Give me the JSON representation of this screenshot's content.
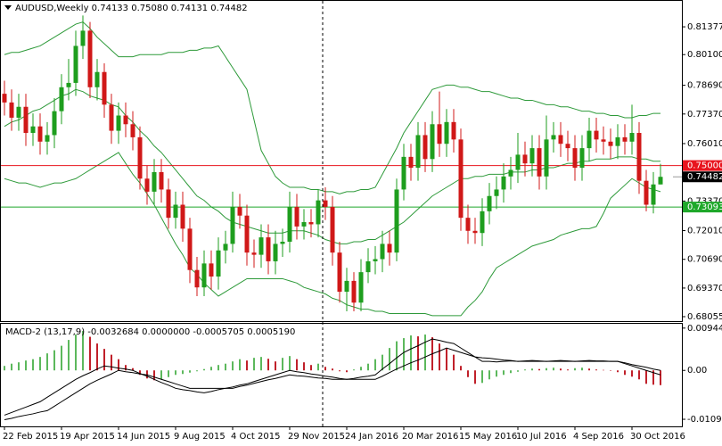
{
  "chart_data": {
    "type": "candlestick",
    "title": "AUDUSD,Weekly  0.74133 0.75080 0.74131 0.74482",
    "ylim": [
      0.6785,
      0.8261
    ],
    "yticks": [
      {
        "value": 0.81377,
        "label": "0.81377"
      },
      {
        "value": 0.801,
        "label": "0.80100"
      },
      {
        "value": 0.7869,
        "label": "0.78690"
      },
      {
        "value": 0.7737,
        "label": "0.77370"
      },
      {
        "value": 0.7601,
        "label": "0.76010"
      },
      {
        "value": 0.7337,
        "label": "0.73370"
      },
      {
        "value": 0.7201,
        "label": "0.72010"
      },
      {
        "value": 0.7069,
        "label": "0.70690"
      },
      {
        "value": 0.6937,
        "label": "0.69370"
      },
      {
        "value": 0.68055,
        "label": "0.68055"
      }
    ],
    "categories": [
      "22 Feb 2015",
      null,
      null,
      null,
      null,
      null,
      null,
      null,
      "19 Apr 2015",
      null,
      null,
      null,
      null,
      null,
      null,
      null,
      "14 Jun 2015",
      null,
      null,
      null,
      null,
      null,
      null,
      null,
      "9 Aug 2015",
      null,
      null,
      null,
      null,
      null,
      null,
      null,
      "4 Oct 2015",
      null,
      null,
      null,
      null,
      null,
      null,
      null,
      "29 Nov 2015",
      null,
      null,
      null,
      null,
      null,
      null,
      null,
      "24 Jan 2016",
      null,
      null,
      null,
      null,
      null,
      null,
      null,
      "20 Mar 2016",
      null,
      null,
      null,
      null,
      null,
      null,
      null,
      "15 May 2016",
      null,
      null,
      null,
      null,
      null,
      null,
      null,
      "10 Jul 2016",
      null,
      null,
      null,
      null,
      null,
      null,
      null,
      "4 Sep 2016",
      null,
      null,
      null,
      null,
      null,
      null,
      null,
      "30 Oct 2016",
      null,
      null,
      null,
      null
    ],
    "up_color": "#1e9e1e",
    "down_color": "#d01818",
    "candles": {
      "open": [
        0.783,
        0.779,
        0.772,
        0.777,
        0.765,
        0.768,
        0.761,
        0.764,
        0.775,
        0.786,
        0.788,
        0.805,
        0.812,
        0.786,
        0.793,
        0.778,
        0.766,
        0.773,
        0.769,
        0.763,
        0.744,
        0.738,
        0.747,
        0.739,
        0.726,
        0.732,
        0.721,
        0.702,
        0.694,
        0.705,
        0.699,
        0.711,
        0.714,
        0.731,
        0.727,
        0.71,
        0.709,
        0.717,
        0.706,
        0.714,
        0.715,
        0.731,
        0.722,
        0.724,
        0.723,
        0.734,
        0.731,
        0.71,
        0.692,
        0.697,
        0.687,
        0.701,
        0.706,
        0.707,
        0.714,
        0.71,
        0.739,
        0.754,
        0.749,
        0.764,
        0.753,
        0.769,
        0.76,
        0.77,
        0.762,
        0.726,
        0.72,
        0.719,
        0.729,
        0.736,
        0.739,
        0.745,
        0.748,
        0.755,
        0.751,
        0.758,
        0.745,
        0.762,
        0.764,
        0.76,
        0.758,
        0.749,
        0.758,
        0.766,
        0.762,
        0.761,
        0.759,
        0.763,
        0.761,
        0.765,
        0.743,
        0.732,
        0.74133
      ],
      "high": [
        0.789,
        0.785,
        0.783,
        0.783,
        0.774,
        0.774,
        0.77,
        0.781,
        0.792,
        0.799,
        0.812,
        0.819,
        0.816,
        0.799,
        0.797,
        0.783,
        0.779,
        0.779,
        0.775,
        0.768,
        0.75,
        0.753,
        0.753,
        0.744,
        0.738,
        0.738,
        0.726,
        0.708,
        0.711,
        0.711,
        0.717,
        0.72,
        0.738,
        0.737,
        0.732,
        0.716,
        0.723,
        0.723,
        0.72,
        0.721,
        0.738,
        0.737,
        0.73,
        0.73,
        0.739,
        0.74,
        0.736,
        0.715,
        0.703,
        0.701,
        0.707,
        0.712,
        0.713,
        0.72,
        0.72,
        0.744,
        0.76,
        0.76,
        0.77,
        0.77,
        0.775,
        0.784,
        0.776,
        0.776,
        0.767,
        0.732,
        0.726,
        0.735,
        0.742,
        0.745,
        0.751,
        0.754,
        0.765,
        0.761,
        0.764,
        0.764,
        0.773,
        0.77,
        0.77,
        0.766,
        0.764,
        0.764,
        0.772,
        0.772,
        0.768,
        0.767,
        0.769,
        0.769,
        0.778,
        0.77,
        0.748,
        0.747,
        0.7508
      ],
      "low": [
        0.773,
        0.766,
        0.766,
        0.759,
        0.759,
        0.755,
        0.755,
        0.758,
        0.769,
        0.78,
        0.782,
        0.799,
        0.781,
        0.78,
        0.772,
        0.76,
        0.76,
        0.763,
        0.757,
        0.739,
        0.732,
        0.732,
        0.733,
        0.721,
        0.721,
        0.715,
        0.696,
        0.69,
        0.69,
        0.693,
        0.693,
        0.705,
        0.71,
        0.721,
        0.704,
        0.703,
        0.703,
        0.7,
        0.7,
        0.708,
        0.71,
        0.716,
        0.716,
        0.717,
        0.717,
        0.725,
        0.704,
        0.687,
        0.683,
        0.683,
        0.683,
        0.696,
        0.7,
        0.701,
        0.704,
        0.706,
        0.734,
        0.743,
        0.743,
        0.747,
        0.747,
        0.754,
        0.754,
        0.756,
        0.72,
        0.714,
        0.714,
        0.713,
        0.723,
        0.73,
        0.733,
        0.739,
        0.742,
        0.745,
        0.745,
        0.739,
        0.739,
        0.756,
        0.754,
        0.752,
        0.743,
        0.743,
        0.752,
        0.756,
        0.755,
        0.753,
        0.753,
        0.755,
        0.755,
        0.737,
        0.729,
        0.728,
        0.74131
      ],
      "close": [
        0.779,
        0.772,
        0.777,
        0.765,
        0.768,
        0.761,
        0.764,
        0.775,
        0.786,
        0.788,
        0.805,
        0.812,
        0.786,
        0.793,
        0.778,
        0.766,
        0.773,
        0.769,
        0.763,
        0.744,
        0.738,
        0.747,
        0.739,
        0.726,
        0.732,
        0.721,
        0.702,
        0.694,
        0.705,
        0.699,
        0.711,
        0.714,
        0.731,
        0.727,
        0.71,
        0.709,
        0.717,
        0.706,
        0.714,
        0.715,
        0.731,
        0.722,
        0.724,
        0.723,
        0.734,
        0.731,
        0.71,
        0.692,
        0.697,
        0.687,
        0.701,
        0.706,
        0.707,
        0.714,
        0.71,
        0.739,
        0.754,
        0.749,
        0.764,
        0.753,
        0.769,
        0.76,
        0.77,
        0.762,
        0.726,
        0.72,
        0.719,
        0.729,
        0.736,
        0.739,
        0.745,
        0.748,
        0.755,
        0.751,
        0.758,
        0.745,
        0.762,
        0.764,
        0.76,
        0.758,
        0.749,
        0.758,
        0.766,
        0.762,
        0.761,
        0.759,
        0.763,
        0.761,
        0.765,
        0.743,
        0.732,
        0.74133,
        0.74482
      ]
    },
    "bands": {
      "color": "#2e9a3a",
      "upper": [
        0.801,
        0.802,
        0.802,
        0.803,
        0.804,
        0.805,
        0.807,
        0.809,
        0.811,
        0.813,
        0.815,
        0.816,
        0.813,
        0.809,
        0.806,
        0.803,
        0.8,
        0.8,
        0.8,
        0.801,
        0.801,
        0.801,
        0.801,
        0.802,
        0.802,
        0.802,
        0.803,
        0.803,
        0.804,
        0.804,
        0.805,
        0.8,
        0.795,
        0.79,
        0.785,
        0.771,
        0.757,
        0.751,
        0.745,
        0.742,
        0.74,
        0.74,
        0.74,
        0.739,
        0.739,
        0.738,
        0.738,
        0.737,
        0.738,
        0.738,
        0.739,
        0.739,
        0.74,
        0.746,
        0.752,
        0.758,
        0.765,
        0.77,
        0.775,
        0.78,
        0.785,
        0.786,
        0.787,
        0.787,
        0.786,
        0.786,
        0.785,
        0.784,
        0.784,
        0.783,
        0.782,
        0.781,
        0.781,
        0.78,
        0.78,
        0.779,
        0.778,
        0.778,
        0.777,
        0.777,
        0.776,
        0.775,
        0.775,
        0.774,
        0.774,
        0.773,
        0.773,
        0.772,
        0.772,
        0.773,
        0.773,
        0.774,
        0.774
      ],
      "middle": [
        0.768,
        0.77,
        0.771,
        0.773,
        0.775,
        0.776,
        0.778,
        0.78,
        0.782,
        0.783,
        0.785,
        0.784,
        0.782,
        0.781,
        0.78,
        0.778,
        0.777,
        0.773,
        0.77,
        0.766,
        0.763,
        0.759,
        0.756,
        0.752,
        0.748,
        0.744,
        0.74,
        0.736,
        0.734,
        0.731,
        0.729,
        0.726,
        0.724,
        0.723,
        0.722,
        0.721,
        0.72,
        0.719,
        0.719,
        0.719,
        0.72,
        0.72,
        0.72,
        0.719,
        0.718,
        0.716,
        0.715,
        0.714,
        0.714,
        0.715,
        0.715,
        0.716,
        0.716,
        0.718,
        0.72,
        0.722,
        0.724,
        0.727,
        0.73,
        0.733,
        0.736,
        0.738,
        0.74,
        0.742,
        0.744,
        0.744,
        0.745,
        0.745,
        0.746,
        0.746,
        0.746,
        0.747,
        0.747,
        0.747,
        0.748,
        0.748,
        0.749,
        0.749,
        0.75,
        0.751,
        0.751,
        0.752,
        0.752,
        0.753,
        0.753,
        0.753,
        0.754,
        0.754,
        0.754,
        0.753,
        0.753,
        0.752,
        0.752
      ],
      "lower": [
        0.744,
        0.743,
        0.742,
        0.742,
        0.741,
        0.74,
        0.741,
        0.742,
        0.742,
        0.743,
        0.744,
        0.746,
        0.748,
        0.75,
        0.752,
        0.754,
        0.756,
        0.751,
        0.746,
        0.742,
        0.737,
        0.732,
        0.726,
        0.72,
        0.714,
        0.709,
        0.703,
        0.7,
        0.696,
        0.693,
        0.69,
        0.692,
        0.694,
        0.696,
        0.698,
        0.698,
        0.698,
        0.698,
        0.698,
        0.698,
        0.697,
        0.696,
        0.694,
        0.693,
        0.692,
        0.691,
        0.689,
        0.688,
        0.686,
        0.685,
        0.684,
        0.684,
        0.683,
        0.683,
        0.682,
        0.682,
        0.682,
        0.682,
        0.682,
        0.682,
        0.681,
        0.681,
        0.681,
        0.681,
        0.681,
        0.685,
        0.688,
        0.692,
        0.698,
        0.703,
        0.705,
        0.707,
        0.709,
        0.711,
        0.713,
        0.714,
        0.715,
        0.716,
        0.718,
        0.719,
        0.72,
        0.721,
        0.721,
        0.722,
        0.728,
        0.735,
        0.738,
        0.741,
        0.744,
        0.742,
        0.74,
        0.739,
        0.738
      ]
    },
    "levels": [
      {
        "value": 0.75,
        "label": "0.75000",
        "color": "#e8141e"
      },
      {
        "value": 0.73093,
        "label": "0.73093",
        "color": "#1ea82a"
      }
    ],
    "last_price": {
      "value": 0.74482,
      "label": "0.74482",
      "color": "#000000"
    },
    "macd": {
      "title": "MACD-2 (13,17,9) -0.0032684 0.0000000 -0.0005705 0.0005190",
      "ylim": [
        -0.0125,
        0.0106
      ],
      "yticks": [
        {
          "value": 0.009441,
          "label": "0.009441"
        },
        {
          "value": 0,
          "label": "0.00"
        },
        {
          "value": -0.010912,
          "label": "-0.010912"
        }
      ],
      "up_color": "#5cb85c",
      "down_color": "#c0202a",
      "line_color": "#000000",
      "histogram": [
        0.001,
        0.0015,
        0.0018,
        0.0022,
        0.0025,
        0.003,
        0.0038,
        0.0045,
        0.0055,
        0.0068,
        0.008,
        0.0088,
        0.0075,
        0.006,
        0.0048,
        0.0035,
        0.0025,
        0.0012,
        0.0005,
        -0.001,
        -0.0018,
        -0.0022,
        -0.002,
        -0.0015,
        -0.001,
        -0.0008,
        -0.0005,
        -0.0002,
        0.0003,
        0.0008,
        0.0012,
        0.0015,
        0.002,
        0.0025,
        0.0022,
        0.0028,
        0.003,
        0.0026,
        0.002,
        0.0028,
        0.0032,
        0.0025,
        0.0018,
        0.0012,
        0.0015,
        0.0008,
        0.0004,
        -0.0002,
        -0.0004,
        0.0002,
        0.0008,
        0.0015,
        0.0025,
        0.0035,
        0.005,
        0.0065,
        0.0072,
        0.0078,
        0.0076,
        0.008,
        0.0074,
        0.006,
        0.005,
        0.0035,
        0.001,
        -0.0015,
        -0.003,
        -0.0028,
        -0.002,
        -0.0014,
        -0.001,
        -0.0006,
        -0.0003,
        0.0002,
        0.0004,
        0.0003,
        0.0005,
        0.0006,
        0.0004,
        0.0002,
        0.0005,
        0.0006,
        0.0004,
        0.0002,
        0.0001,
        0.0,
        -0.0004,
        -0.001,
        -0.0014,
        -0.002,
        -0.003,
        -0.0032,
        -0.0033
      ],
      "main": [
        -0.01,
        -0.0094,
        -0.0088,
        -0.0082,
        -0.0076,
        -0.007,
        -0.006,
        -0.005,
        -0.004,
        -0.003,
        -0.002,
        -0.0012,
        -0.0005,
        0.0003,
        0.001,
        0.0008,
        0.0005,
        0.0003,
        0.0,
        -0.0007,
        -0.0013,
        -0.002,
        -0.0027,
        -0.0033,
        -0.004,
        -0.0043,
        -0.0045,
        -0.0048,
        -0.005,
        -0.0047,
        -0.0043,
        -0.004,
        -0.0037,
        -0.0033,
        -0.003,
        -0.0025,
        -0.002,
        -0.0015,
        -0.001,
        -0.0005,
        0.0,
        -0.0003,
        -0.0005,
        -0.0008,
        -0.001,
        -0.0013,
        -0.0015,
        -0.0018,
        -0.002,
        -0.0018,
        -0.0015,
        -0.0013,
        -0.001,
        0.0003,
        0.0015,
        0.0028,
        0.004,
        0.0048,
        0.0055,
        0.0063,
        0.007,
        0.0067,
        0.0063,
        0.006,
        0.005,
        0.004,
        0.003,
        0.002,
        0.002,
        0.0019,
        0.002,
        0.0021,
        0.002,
        0.0021,
        0.0022,
        0.0021,
        0.002,
        0.0021,
        0.0022,
        0.0021,
        0.002,
        0.0021,
        0.0022,
        0.0021,
        0.0021,
        0.002,
        0.002,
        0.0015,
        0.001,
        0.0005,
        0.0,
        -0.0005,
        -0.001
      ],
      "signal": [
        -0.011,
        -0.0107,
        -0.0103,
        -0.01,
        -0.0097,
        -0.0093,
        -0.009,
        -0.008,
        -0.007,
        -0.006,
        -0.005,
        -0.004,
        -0.003,
        -0.0022,
        -0.0015,
        -0.0008,
        0.0,
        -0.0003,
        -0.0005,
        -0.0008,
        -0.001,
        -0.0015,
        -0.002,
        -0.0025,
        -0.003,
        -0.0035,
        -0.004,
        -0.004,
        -0.004,
        -0.004,
        -0.004,
        -0.004,
        -0.004,
        -0.0036,
        -0.0033,
        -0.0029,
        -0.0025,
        -0.0021,
        -0.0018,
        -0.0014,
        -0.001,
        -0.0012,
        -0.0013,
        -0.0015,
        -0.0017,
        -0.0018,
        -0.002,
        -0.002,
        -0.002,
        -0.002,
        -0.002,
        -0.002,
        -0.002,
        -0.0013,
        -0.0005,
        0.0003,
        0.001,
        0.0017,
        0.0023,
        0.003,
        0.0037,
        0.0043,
        0.005,
        0.0045,
        0.004,
        0.0035,
        0.003,
        0.0028,
        0.0027,
        0.0025,
        0.0023,
        0.0022,
        0.002,
        0.002,
        0.002,
        0.002,
        0.002,
        0.002,
        0.002,
        0.002,
        0.002,
        0.002,
        0.002,
        0.002,
        0.002,
        0.002,
        0.002,
        0.0017,
        0.0013,
        0.001,
        0.0007,
        0.0003,
        0.0
      ]
    }
  }
}
